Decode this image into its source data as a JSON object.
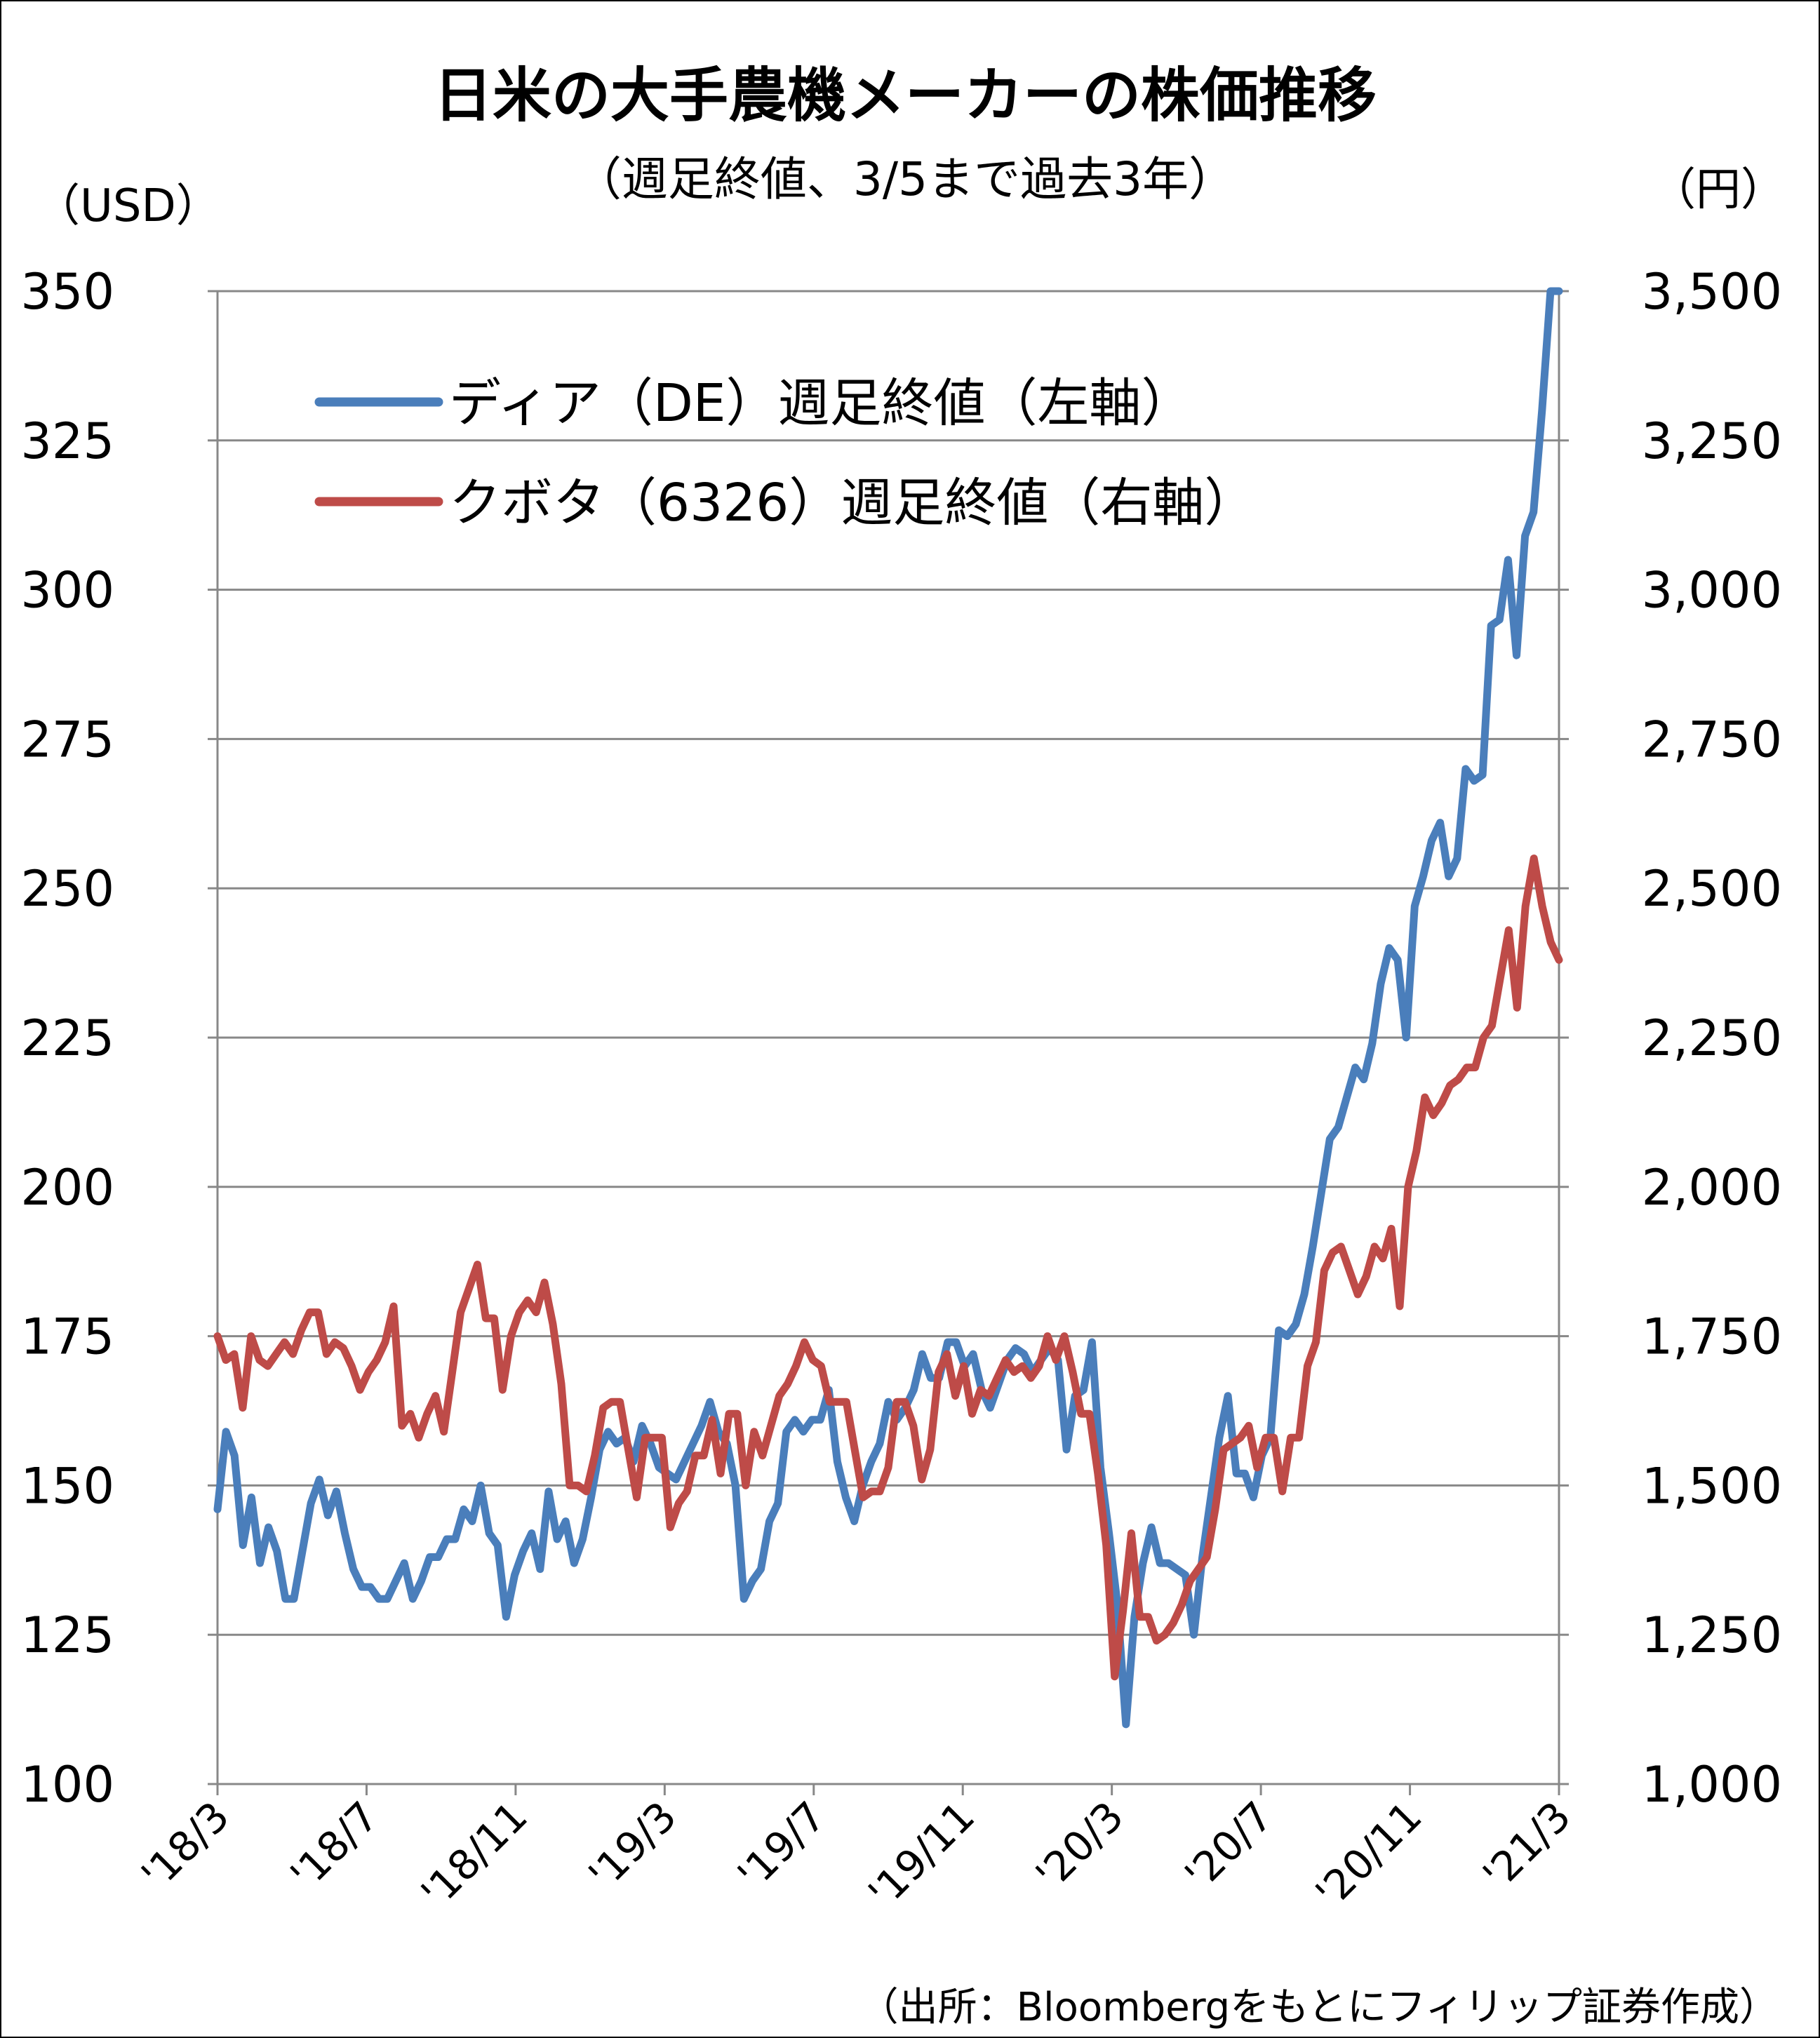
{
  "chart_data": {
    "type": "line",
    "title": "日米の大手農機メーカーの株価推移",
    "subtitle": "（週足終値、3/5まで過去3年）",
    "source": "（出所：Bloombergをもとにフィリップ証券作成）",
    "y_left": {
      "unit_label": "（USD）",
      "range": [
        100,
        350
      ],
      "ticks": [
        "100",
        "125",
        "150",
        "175",
        "200",
        "225",
        "250",
        "275",
        "300",
        "325",
        "350"
      ]
    },
    "y_right": {
      "unit_label": "（円）",
      "range": [
        1000,
        3500
      ],
      "ticks": [
        "1,000",
        "1,250",
        "1,500",
        "1,750",
        "2,000",
        "2,250",
        "2,500",
        "2,750",
        "3,000",
        "3,250",
        "3,500"
      ]
    },
    "x_ticks": [
      "'18/3",
      "'18/7",
      "'18/11",
      "'19/3",
      "'19/7",
      "'19/11",
      "'20/3",
      "'20/7",
      "'20/11",
      "'21/3"
    ],
    "grid": true,
    "legend_position": "top-left",
    "series": [
      {
        "name": "ディア（DE）週足終値（左軸）",
        "axis": "left",
        "color": "#4a7ebb",
        "values": [
          146,
          159,
          155,
          140,
          148,
          137,
          143,
          139,
          131,
          131,
          139,
          147,
          151,
          145,
          149,
          142,
          136,
          133,
          133,
          131,
          131,
          134,
          137,
          131,
          134,
          138,
          138,
          141,
          141,
          146,
          144,
          150,
          142,
          140,
          128,
          135,
          139,
          142,
          136,
          149,
          141,
          144,
          137,
          141,
          148,
          156,
          159,
          157,
          158,
          154,
          160,
          157,
          153,
          152,
          151,
          154,
          157,
          160,
          164,
          159,
          157,
          150,
          131,
          134,
          136,
          144,
          147,
          159,
          161,
          159,
          161,
          161,
          166,
          154,
          148,
          144,
          150,
          154,
          157,
          164,
          161,
          163,
          166,
          172,
          168,
          168,
          174,
          174,
          170,
          172,
          166,
          163,
          167,
          171,
          173,
          172,
          169,
          171,
          173,
          171,
          156,
          165,
          166,
          174,
          153,
          142,
          130,
          110,
          128,
          137,
          143,
          137,
          137,
          136,
          135,
          125,
          138,
          148,
          158,
          165,
          152,
          152,
          148,
          155,
          158,
          176,
          175,
          177,
          182,
          190,
          199,
          208,
          210,
          215,
          220,
          218,
          224,
          234,
          240,
          238,
          225,
          247,
          252,
          258,
          261,
          252,
          255,
          270,
          268,
          269,
          294,
          295,
          305,
          289,
          309,
          313,
          330,
          350,
          350
        ]
      },
      {
        "name": "クボタ（6326）週足終値（右軸）",
        "axis": "right",
        "color": "#be4b48",
        "values": [
          1750,
          1710,
          1720,
          1630,
          1750,
          1710,
          1700,
          1720,
          1740,
          1720,
          1760,
          1790,
          1790,
          1720,
          1740,
          1730,
          1700,
          1660,
          1690,
          1710,
          1740,
          1800,
          1600,
          1620,
          1580,
          1620,
          1650,
          1590,
          1690,
          1790,
          1830,
          1870,
          1780,
          1780,
          1660,
          1750,
          1790,
          1810,
          1790,
          1840,
          1770,
          1670,
          1500,
          1500,
          1490,
          1550,
          1630,
          1640,
          1640,
          1560,
          1480,
          1580,
          1580,
          1580,
          1430,
          1470,
          1490,
          1550,
          1550,
          1610,
          1520,
          1620,
          1620,
          1500,
          1590,
          1550,
          1600,
          1650,
          1670,
          1700,
          1740,
          1710,
          1700,
          1640,
          1640,
          1640,
          1560,
          1480,
          1490,
          1490,
          1530,
          1640,
          1640,
          1600,
          1510,
          1560,
          1690,
          1720,
          1650,
          1700,
          1620,
          1660,
          1650,
          1680,
          1710,
          1690,
          1700,
          1680,
          1700,
          1750,
          1710,
          1750,
          1690,
          1620,
          1620,
          1520,
          1400,
          1180,
          1290,
          1420,
          1280,
          1280,
          1240,
          1250,
          1270,
          1300,
          1340,
          1360,
          1380,
          1460,
          1560,
          1570,
          1580,
          1600,
          1530,
          1580,
          1580,
          1490,
          1580,
          1580,
          1700,
          1740,
          1860,
          1890,
          1900,
          1860,
          1820,
          1850,
          1900,
          1880,
          1930,
          1800,
          2000,
          2060,
          2150,
          2120,
          2140,
          2170,
          2180,
          2200,
          2200,
          2250,
          2270,
          2350,
          2430,
          2300,
          2470,
          2550,
          2470,
          2410,
          2380
        ]
      }
    ]
  }
}
